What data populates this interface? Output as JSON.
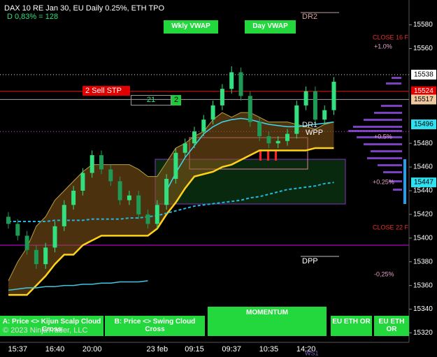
{
  "chart_data": {
    "type": "candlestick",
    "title": "DAX 10  RE Jan 30, EU Daily 0.25%, ETH TPO",
    "subtitle": "D 0,83% = 128",
    "categories": [
      null,
      "15:37",
      null,
      null,
      null,
      "16:40",
      null,
      null,
      null,
      "20:00",
      null,
      null,
      null,
      null,
      null,
      null,
      "23 feb",
      null,
      null,
      null,
      "09:15",
      null,
      null,
      null,
      "09:37",
      null,
      null,
      null,
      "10:35",
      null,
      null,
      null,
      "14:20",
      null,
      null,
      null
    ],
    "open": [
      15418,
      15412,
      15402,
      15390,
      15378,
      15392,
      15410,
      15428,
      15440,
      15455,
      15470,
      15458,
      15448,
      15432,
      15436,
      15420,
      15412,
      15428,
      15450,
      15472,
      15480,
      15490,
      15500,
      15512,
      15526,
      15540,
      15520,
      15498,
      15486,
      15480,
      15482,
      15488,
      15512,
      15524,
      15500,
      15508
    ],
    "high": [
      15422,
      15416,
      15406,
      15394,
      15396,
      15414,
      15432,
      15444,
      15459,
      15474,
      15474,
      15462,
      15452,
      15440,
      15440,
      15424,
      15432,
      15454,
      15476,
      15484,
      15494,
      15504,
      15516,
      15530,
      15545,
      15544,
      15524,
      15502,
      15490,
      15486,
      15492,
      15516,
      15528,
      15528,
      15512,
      15536
    ],
    "low": [
      15408,
      15398,
      15386,
      15374,
      15374,
      15388,
      15406,
      15424,
      15436,
      15451,
      15454,
      15444,
      15428,
      15428,
      15416,
      15408,
      15408,
      15424,
      15446,
      15468,
      15476,
      15486,
      15496,
      15508,
      15522,
      15516,
      15494,
      15482,
      15476,
      15476,
      15478,
      15484,
      15508,
      15496,
      15496,
      15504
    ],
    "close": [
      15412,
      15402,
      15390,
      15378,
      15392,
      15410,
      15428,
      15440,
      15455,
      15470,
      15458,
      15448,
      15432,
      15436,
      15420,
      15412,
      15428,
      15450,
      15472,
      15480,
      15490,
      15500,
      15512,
      15526,
      15540,
      15520,
      15498,
      15486,
      15480,
      15482,
      15488,
      15512,
      15524,
      15500,
      15508,
      15532
    ],
    "color_up": "#33e07f",
    "color_down": "#1f9a55",
    "ylim": [
      15312,
      15601
    ],
    "yticks": [
      15580,
      15560,
      15480,
      15460,
      15440,
      15420,
      15400,
      15380,
      15360,
      15340,
      15320
    ],
    "cloud": {
      "upper": [
        15364,
        15380,
        15392,
        15410,
        15418,
        15432,
        15440,
        15448,
        15456,
        15462,
        15462,
        15462,
        15462,
        15462,
        15458,
        15452,
        15452,
        15464,
        15476,
        15480,
        15486,
        15490,
        15500,
        15506,
        15502,
        15506,
        15506,
        15502,
        15498,
        15498,
        15498,
        15496,
        15494,
        15492,
        15496,
        15498
      ],
      "lower": [
        15352,
        15352,
        15352,
        15360,
        15368,
        15378,
        15386,
        15386,
        15394,
        15398,
        15402,
        15402,
        15402,
        15402,
        15402,
        15402,
        15408,
        15420,
        15430,
        15442,
        15452,
        15454,
        15456,
        15460,
        15462,
        15466,
        15470,
        15474,
        15474,
        15474,
        15474,
        15474,
        15474,
        15476,
        15476,
        15476
      ],
      "upper_color": "#b8a040",
      "lower_color": "#ffd21a",
      "fill": "#8a5a1a"
    },
    "overlays": [
      {
        "color": "#40c8e0",
        "dash": false,
        "values": [
          15356,
          15357,
          15358,
          15358,
          15359,
          15359,
          15360,
          15360,
          15361,
          15361,
          15362,
          15362,
          15363,
          15363,
          15363,
          15364,
          null,
          null,
          null,
          null,
          null,
          null,
          null,
          null,
          null,
          null,
          null,
          null,
          null,
          null,
          null,
          null,
          null,
          null,
          null,
          null
        ]
      },
      {
        "color": "#40d8f0",
        "dash": false,
        "values": [
          null,
          null,
          null,
          null,
          null,
          null,
          null,
          null,
          null,
          null,
          null,
          null,
          null,
          null,
          null,
          null,
          null,
          15440,
          15455,
          15468,
          15478,
          15488,
          15494,
          15498,
          15500,
          15501,
          15500,
          15498,
          15496,
          15495,
          15494,
          15494,
          15495,
          15496,
          15497,
          15498
        ]
      },
      {
        "color": "#20b8e0",
        "dash": true,
        "values": [
          15414,
          15414,
          15414,
          15414,
          15414,
          15415,
          15415,
          15415,
          15415,
          15416,
          15416,
          15416,
          15416,
          15417,
          15417,
          15418,
          15419,
          15421,
          15423,
          15425,
          15427,
          15428,
          15429,
          15430,
          15431,
          15432,
          15434,
          15435,
          15437,
          15439,
          15441,
          15442,
          15443,
          15444,
          15446,
          15447
        ]
      }
    ],
    "levels": [
      {
        "value": 15538,
        "color": "#dddddd",
        "dash": true
      },
      {
        "value": 15524,
        "color": "#d00000",
        "dash": false
      },
      {
        "value": 15517,
        "color": "#909090",
        "dash": false
      },
      {
        "value": 15490,
        "color": "#e040e0",
        "dash": true
      },
      {
        "value": 15394,
        "color": "#b000c0",
        "dash": false
      }
    ],
    "price_tags": [
      {
        "value": 15538,
        "color": "#ffffff",
        "text_color": "#000000"
      },
      {
        "value": 15524,
        "color": "#e00000",
        "text_color": "#ffffff"
      },
      {
        "value": 15517,
        "color": "#f0c8a0",
        "text_color": "#000000"
      },
      {
        "value": 15496,
        "color": "#30e0f0",
        "text_color": "#000000"
      },
      {
        "value": 15447,
        "color": "#30e0f0",
        "text_color": "#000000"
      }
    ],
    "annotations": {
      "dr2": "DR2",
      "wkly_vwap": "Wkly VWAP",
      "day_vwap": "Day VWAP",
      "close16": "CLOSE 16 F",
      "plus1": "+1.0%",
      "sell_stp": "2  Sell STP",
      "qty": "21",
      "qty2": "2",
      "dr1": "DR1",
      "wpp": "WPP",
      "plus05": "+0.5%",
      "plus025": "+0.25%",
      "close22": "CLOSE 22 F",
      "dpp": "DPP",
      "minus025": "-0,25%",
      "ws1": "WS1",
      "copyright": "© 2023 NinjaTrader, LLC"
    },
    "buttons": [
      "A: Price <> Kijun Scalp Cloud Cross",
      "B: Price <> Swing Cloud Cross",
      "MOMENTUM",
      "EU ETH OR",
      "EU ETH OR"
    ]
  }
}
